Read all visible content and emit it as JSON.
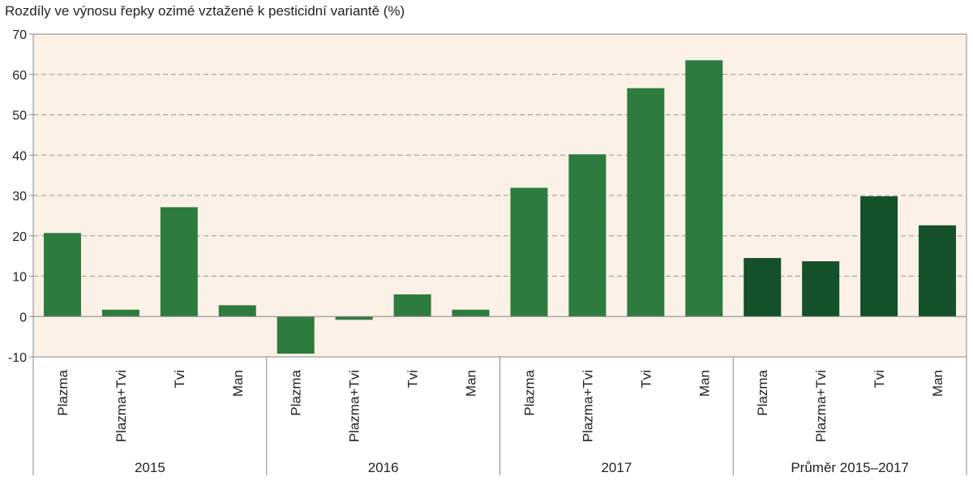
{
  "chart_data": {
    "type": "bar",
    "title": "Rozdíly ve výnosu řepky ozimé vztažené k pesticidní variantě (%)",
    "xlabel": "",
    "ylabel": "",
    "ylim": [
      -10,
      70
    ],
    "yticks": [
      -10,
      0,
      10,
      20,
      30,
      40,
      50,
      60,
      70
    ],
    "grid": "horizontal dashed",
    "groups": [
      {
        "name": "2015",
        "categories": [
          "Plazma",
          "Plazma+Tvi",
          "Tvi",
          "Man"
        ],
        "values": [
          20.7,
          1.7,
          27.1,
          2.8
        ]
      },
      {
        "name": "2016",
        "categories": [
          "Plazma",
          "Plazma+Tvi",
          "Tvi",
          "Man"
        ],
        "values": [
          -9.2,
          -0.8,
          5.5,
          1.7
        ]
      },
      {
        "name": "2017",
        "categories": [
          "Plazma",
          "Plazma+Tvi",
          "Tvi",
          "Man"
        ],
        "values": [
          31.9,
          40.2,
          56.6,
          63.5
        ]
      },
      {
        "name": "Průměr 2015–2017",
        "categories": [
          "Plazma",
          "Plazma+Tvi",
          "Tvi",
          "Man"
        ],
        "values": [
          14.5,
          13.7,
          29.8,
          22.6
        ]
      }
    ],
    "colors": {
      "plot_background": "#fbf1e6",
      "bar_years": "#2e7b40",
      "bar_average": "#14512b",
      "grid": "#999999",
      "axis": "#888888"
    }
  }
}
